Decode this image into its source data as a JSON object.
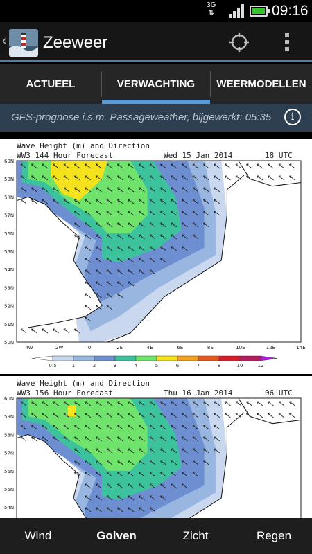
{
  "status_bar": {
    "network": "3G",
    "time": "09:16"
  },
  "app": {
    "title": "Zeeweer"
  },
  "tabs": [
    {
      "label": "ACTUEEL",
      "active": false
    },
    {
      "label": "VERWACHTING",
      "active": true
    },
    {
      "label": "WEERMODELLEN",
      "active": false
    }
  ],
  "info": {
    "text": "GFS-prognose i.s.m. Passageweather, bijgewerkt: 05:35",
    "icon": "info-icon"
  },
  "charts": [
    {
      "header_line1": "Wave Height (m) and Direction",
      "header_line2": "WW3 144 Hour Forecast",
      "date": "Wed 15 Jan 2014",
      "time": "18 UTC"
    },
    {
      "header_line1": "Wave Height (m) and Direction",
      "header_line2": "WW3 156 Hour Forecast",
      "date": "Thu 16 Jan 2014",
      "time": "06 UTC"
    }
  ],
  "chart_data": {
    "type": "heatmap",
    "lat_labels": [
      "60N",
      "59N",
      "58N",
      "57N",
      "56N",
      "55N",
      "54N",
      "53N",
      "52N",
      "51N",
      "50N"
    ],
    "lon_labels": [
      "4W",
      "2W",
      "0",
      "2E",
      "4E",
      "6E",
      "8E",
      "10E",
      "12E",
      "14E"
    ],
    "legend_values": [
      "0.5",
      "1",
      "2",
      "3",
      "4",
      "5",
      "6",
      "7",
      "8",
      "10",
      "12"
    ],
    "legend_colors": [
      "#ffffff",
      "#c9d8ee",
      "#98b6e0",
      "#6d8fd2",
      "#3cc39e",
      "#6fe36c",
      "#f4e21c",
      "#f2a21c",
      "#e7581c",
      "#d61c2a",
      "#b81a5e",
      "#b01cdb"
    ]
  },
  "bottom_nav": [
    {
      "label": "Wind",
      "active": false
    },
    {
      "label": "Golven",
      "active": true
    },
    {
      "label": "Zicht",
      "active": false
    },
    {
      "label": "Regen",
      "active": false
    }
  ]
}
